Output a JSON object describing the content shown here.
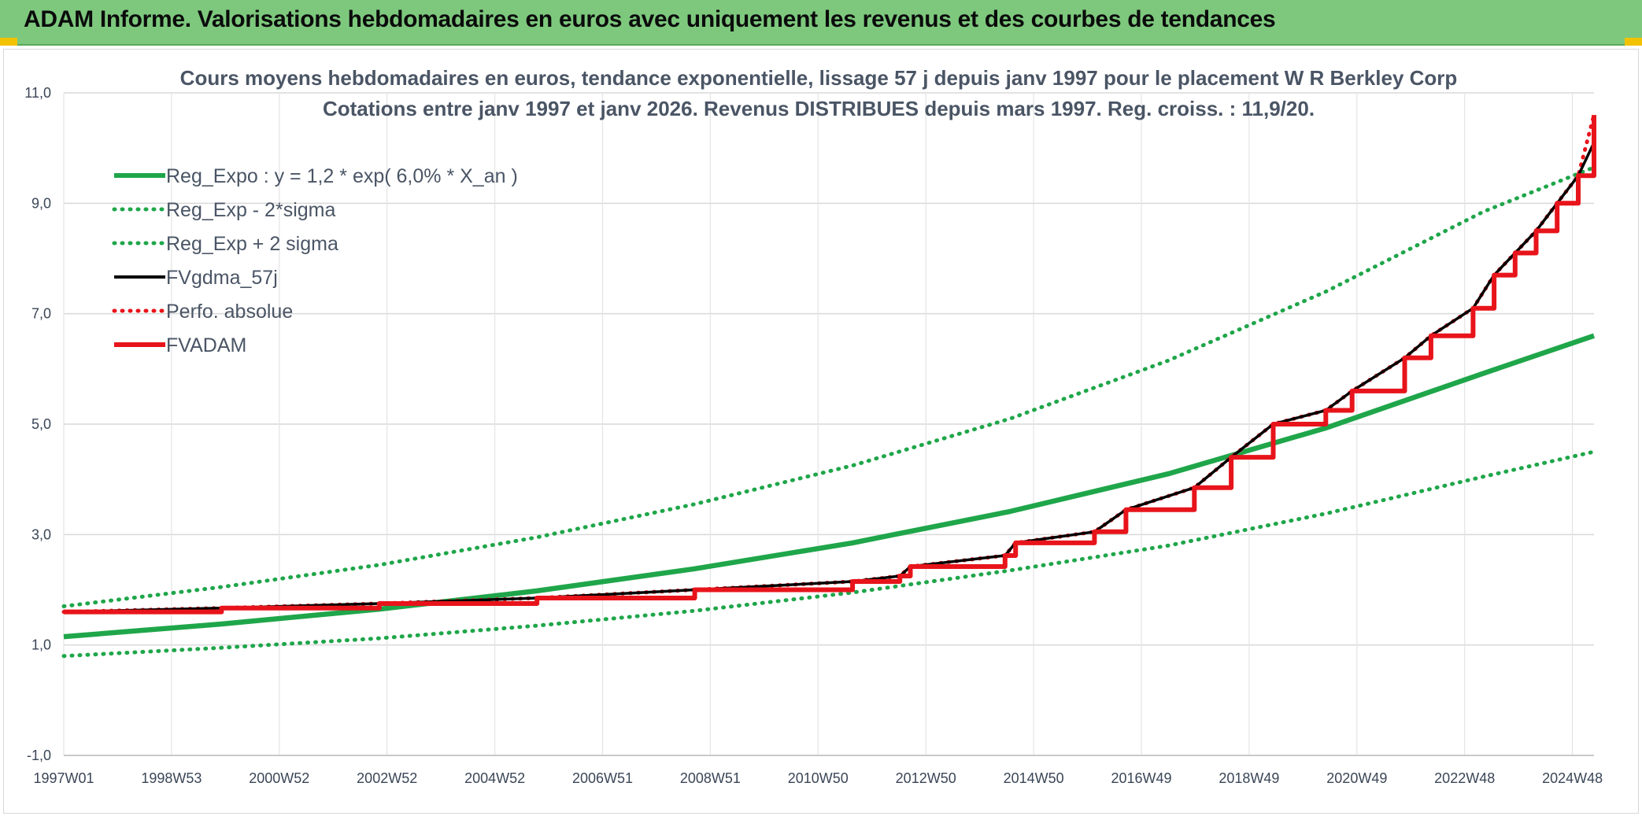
{
  "banner": {
    "title": "ADAM Informe. Valorisations hebdomadaires en euros avec uniquement les revenus et des courbes de tendances",
    "background": "#7dc87d",
    "corner_color": "#f2c200"
  },
  "chart_data": {
    "type": "line",
    "title": "Cours moyens hebdomadaires en euros, tendance exponentielle, lissage 57 j depuis janv 1997 pour le placement W R Berkley Corp",
    "subtitle": "Cotations entre janv 1997 et janv 2026. Revenus DISTRIBUES depuis mars 1997. Reg. croiss. : 11,9/20.",
    "xlabel": "",
    "ylabel": "",
    "x_tick_labels": [
      "1997W01",
      "1998W53",
      "2000W52",
      "2002W52",
      "2004W52",
      "2006W51",
      "2008W51",
      "2010W50",
      "2012W50",
      "2014W50",
      "2016W49",
      "2018W49",
      "2020W49",
      "2022W48",
      "2024W48"
    ],
    "x_range_years": [
      1997.0,
      2026.1
    ],
    "y_ticks": [
      -1.0,
      1.0,
      3.0,
      5.0,
      7.0,
      9.0,
      11.0
    ],
    "y_tick_labels": [
      "-1,0",
      "1,0",
      "3,0",
      "5,0",
      "7,0",
      "9,0",
      "11,0"
    ],
    "ylim": [
      -1.0,
      11.0
    ],
    "grid": true,
    "legend_position": "top-left",
    "legend": [
      {
        "label": "Reg_Expo : y = 1,2 * exp( 6,0% *  X_an )",
        "color": "#1fa64a",
        "style": "solid"
      },
      {
        "label": "Reg_Exp - 2*sigma",
        "color": "#1fa64a",
        "style": "dotted"
      },
      {
        "label": "Reg_Exp + 2 sigma",
        "color": "#1fa64a",
        "style": "dotted"
      },
      {
        "label": "FVgdma_57j",
        "color": "#000000",
        "style": "solid"
      },
      {
        "label": "Perfo. absolue",
        "color": "#e8141b",
        "style": "dotted"
      },
      {
        "label": "FVADAM",
        "color": "#e8141b",
        "style": "solid"
      }
    ],
    "series": [
      {
        "name": "Reg_Expo : y = 1,2 * exp( 6,0% *  X_an )",
        "color": "#1fa64a",
        "style": "solid",
        "x": [
          1997.0,
          2000.0,
          2003.0,
          2006.0,
          2009.0,
          2012.0,
          2015.0,
          2018.0,
          2021.0,
          2024.0,
          2026.1
        ],
        "values": [
          1.15,
          1.38,
          1.65,
          1.98,
          2.38,
          2.85,
          3.42,
          4.1,
          4.93,
          5.92,
          6.6
        ]
      },
      {
        "name": "Reg_Exp - 2*sigma",
        "color": "#1fa64a",
        "style": "dotted",
        "x": [
          1997.0,
          2000.0,
          2003.0,
          2006.0,
          2009.0,
          2012.0,
          2015.0,
          2018.0,
          2021.0,
          2024.0,
          2026.1
        ],
        "values": [
          0.8,
          0.95,
          1.12,
          1.35,
          1.62,
          1.95,
          2.35,
          2.8,
          3.38,
          4.05,
          4.5
        ]
      },
      {
        "name": "Reg_Exp + 2 sigma",
        "color": "#1fa64a",
        "style": "dotted",
        "x": [
          1997.0,
          2000.0,
          2003.0,
          2006.0,
          2009.0,
          2012.0,
          2015.0,
          2018.0,
          2021.0,
          2024.0,
          2026.1
        ],
        "values": [
          1.7,
          2.05,
          2.45,
          2.95,
          3.55,
          4.25,
          5.1,
          6.15,
          7.4,
          8.85,
          9.65
        ]
      },
      {
        "name": "FVgdma_57j",
        "color": "#000000",
        "style": "solid",
        "x": [
          1997.0,
          2000.0,
          2003.0,
          2006.0,
          2009.0,
          2012.0,
          2012.9,
          2013.1,
          2014.9,
          2015.1,
          2016.6,
          2017.2,
          2018.5,
          2019.2,
          2020.0,
          2021.0,
          2021.5,
          2022.5,
          2023.0,
          2023.8,
          2024.2,
          2024.6,
          2025.0,
          2025.4,
          2025.8,
          2026.1
        ],
        "values": [
          1.6,
          1.67,
          1.75,
          1.85,
          2.0,
          2.15,
          2.25,
          2.42,
          2.62,
          2.85,
          3.05,
          3.45,
          3.85,
          4.4,
          5.0,
          5.25,
          5.6,
          6.2,
          6.6,
          7.1,
          7.7,
          8.1,
          8.5,
          9.0,
          9.5,
          10.1
        ]
      },
      {
        "name": "Perfo. absolue",
        "color": "#e8141b",
        "style": "dotted",
        "x": [
          1997.0,
          2000.0,
          2003.0,
          2006.0,
          2009.0,
          2012.0,
          2012.9,
          2013.1,
          2014.9,
          2015.1,
          2016.6,
          2017.2,
          2018.5,
          2019.2,
          2020.0,
          2021.0,
          2021.5,
          2022.5,
          2023.0,
          2023.8,
          2024.2,
          2024.6,
          2025.0,
          2025.4,
          2025.8,
          2026.1
        ],
        "values": [
          1.6,
          1.67,
          1.75,
          1.85,
          2.0,
          2.15,
          2.25,
          2.42,
          2.62,
          2.85,
          3.05,
          3.45,
          3.85,
          4.4,
          5.0,
          5.25,
          5.6,
          6.2,
          6.6,
          7.1,
          7.7,
          8.1,
          8.5,
          9.0,
          9.5,
          10.6
        ]
      },
      {
        "name": "FVADAM",
        "color": "#e8141b",
        "style": "step",
        "x": [
          1997.0,
          2000.0,
          2003.0,
          2006.0,
          2009.0,
          2012.0,
          2012.9,
          2013.1,
          2014.9,
          2015.1,
          2016.6,
          2017.2,
          2018.5,
          2019.2,
          2020.0,
          2021.0,
          2021.5,
          2022.5,
          2023.0,
          2023.8,
          2024.2,
          2024.6,
          2025.0,
          2025.4,
          2025.8,
          2026.1
        ],
        "values": [
          1.6,
          1.67,
          1.75,
          1.85,
          2.0,
          2.15,
          2.25,
          2.42,
          2.62,
          2.85,
          3.05,
          3.45,
          3.85,
          4.4,
          5.0,
          5.25,
          5.6,
          6.2,
          6.6,
          7.1,
          7.7,
          8.1,
          8.5,
          9.0,
          9.5,
          10.6
        ]
      }
    ]
  }
}
